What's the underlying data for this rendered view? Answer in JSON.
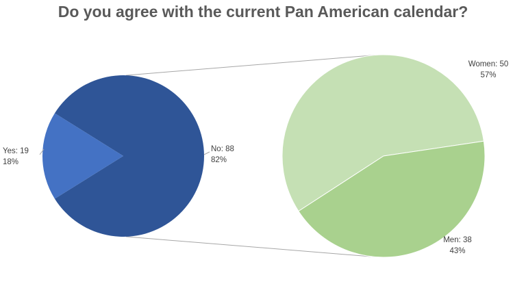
{
  "chart_data": {
    "type": "pie",
    "variant": "pie-of-pie",
    "title": "Do you agree with the current Pan American calendar?",
    "main_pie": {
      "slices": [
        {
          "name": "No",
          "value": 88,
          "percent": "82%",
          "color": "#2f5597"
        },
        {
          "name": "Yes",
          "value": 19,
          "percent": "18%",
          "color": "#4472c4"
        }
      ]
    },
    "breakout_pie": {
      "source_slice": "No",
      "slices": [
        {
          "name": "Women",
          "value": 50,
          "percent": "57%",
          "color": "#c5e0b4"
        },
        {
          "name": "Men",
          "value": 38,
          "percent": "43%",
          "color": "#a9d18e"
        }
      ]
    },
    "connector_color": "#a6a6a6",
    "legend": "none",
    "data_labels": "outside"
  }
}
